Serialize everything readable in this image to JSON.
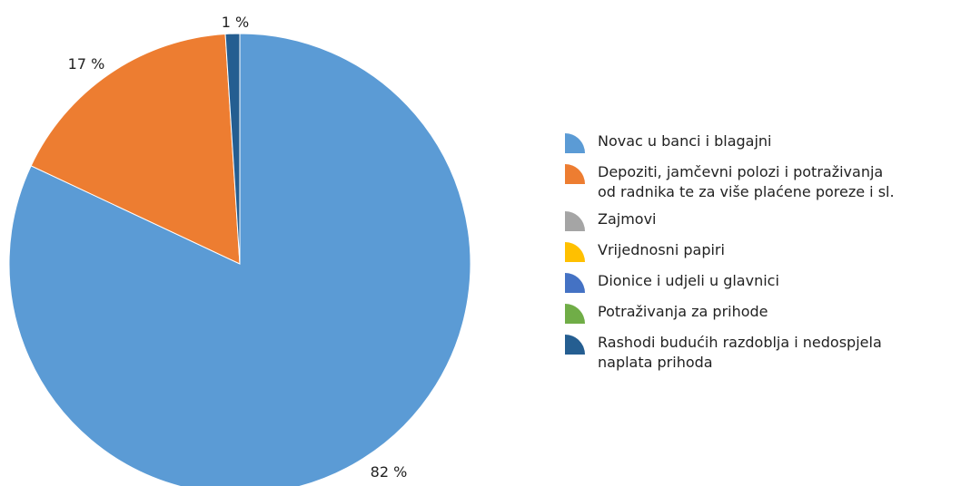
{
  "chart_data": {
    "type": "pie",
    "title": "",
    "slices": [
      {
        "label": "Novac u banci i blagajni",
        "value": 82,
        "value_label": "82 %",
        "color": "#5b9bd5"
      },
      {
        "label": "Depoziti, jamčevni polozi i potraživanja\nod radnika te za više plaćene poreze i sl.",
        "value": 17,
        "value_label": "17 %",
        "color": "#ed7d31"
      },
      {
        "label": "Zajmovi",
        "value": 0,
        "value_label": "",
        "color": "#a5a5a5"
      },
      {
        "label": "Vrijednosni papiri",
        "value": 0,
        "value_label": "",
        "color": "#ffc000"
      },
      {
        "label": "Dionice i udjeli u glavnici",
        "value": 0,
        "value_label": "",
        "color": "#4472c4"
      },
      {
        "label": "Potraživanja za prihode",
        "value": 0,
        "value_label": "",
        "color": "#70ad47"
      },
      {
        "label": "Rashodi budućih razdoblja i nedospjela\nnaplata prihoda",
        "value": 1,
        "value_label": "1 %",
        "color": "#255e91"
      }
    ],
    "legend_position": "right"
  }
}
